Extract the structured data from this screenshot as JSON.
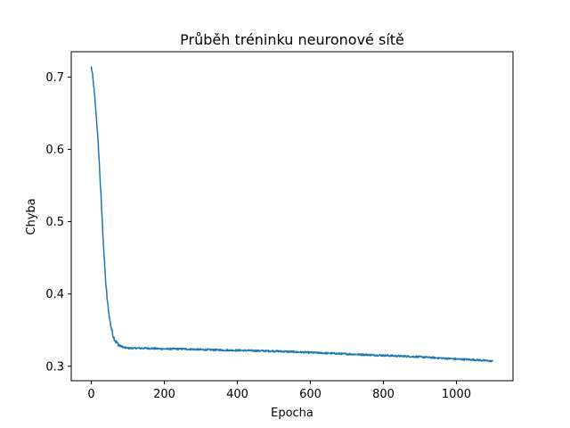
{
  "chart_data": {
    "type": "line",
    "title": "Průběh tréninku neuronové sítě",
    "xlabel": "Epocha",
    "ylabel": "Chyba",
    "xlim": [
      -55,
      1155
    ],
    "ylim": [
      0.28,
      0.735
    ],
    "xticks": [
      0,
      200,
      400,
      600,
      800,
      1000
    ],
    "xtick_labels": [
      "0",
      "200",
      "400",
      "600",
      "800",
      "1000"
    ],
    "yticks": [
      0.3,
      0.4,
      0.5,
      0.6,
      0.7
    ],
    "ytick_labels": [
      "0.3",
      "0.4",
      "0.5",
      "0.6",
      "0.7"
    ],
    "grid": false,
    "legend": false,
    "series": [
      {
        "color": "#1f77b4",
        "x": [
          0,
          5,
          10,
          15,
          20,
          25,
          30,
          35,
          40,
          45,
          50,
          55,
          60,
          65,
          70,
          75,
          80,
          90,
          100,
          120,
          150,
          200,
          250,
          300,
          400,
          500,
          600,
          700,
          800,
          900,
          1000,
          1050,
          1100
        ],
        "y": [
          0.714,
          0.695,
          0.668,
          0.637,
          0.598,
          0.55,
          0.5,
          0.452,
          0.412,
          0.385,
          0.366,
          0.352,
          0.342,
          0.336,
          0.332,
          0.33,
          0.328,
          0.326,
          0.325,
          0.325,
          0.325,
          0.324,
          0.324,
          0.323,
          0.322,
          0.321,
          0.319,
          0.317,
          0.315,
          0.313,
          0.31,
          0.309,
          0.307
        ]
      }
    ]
  }
}
